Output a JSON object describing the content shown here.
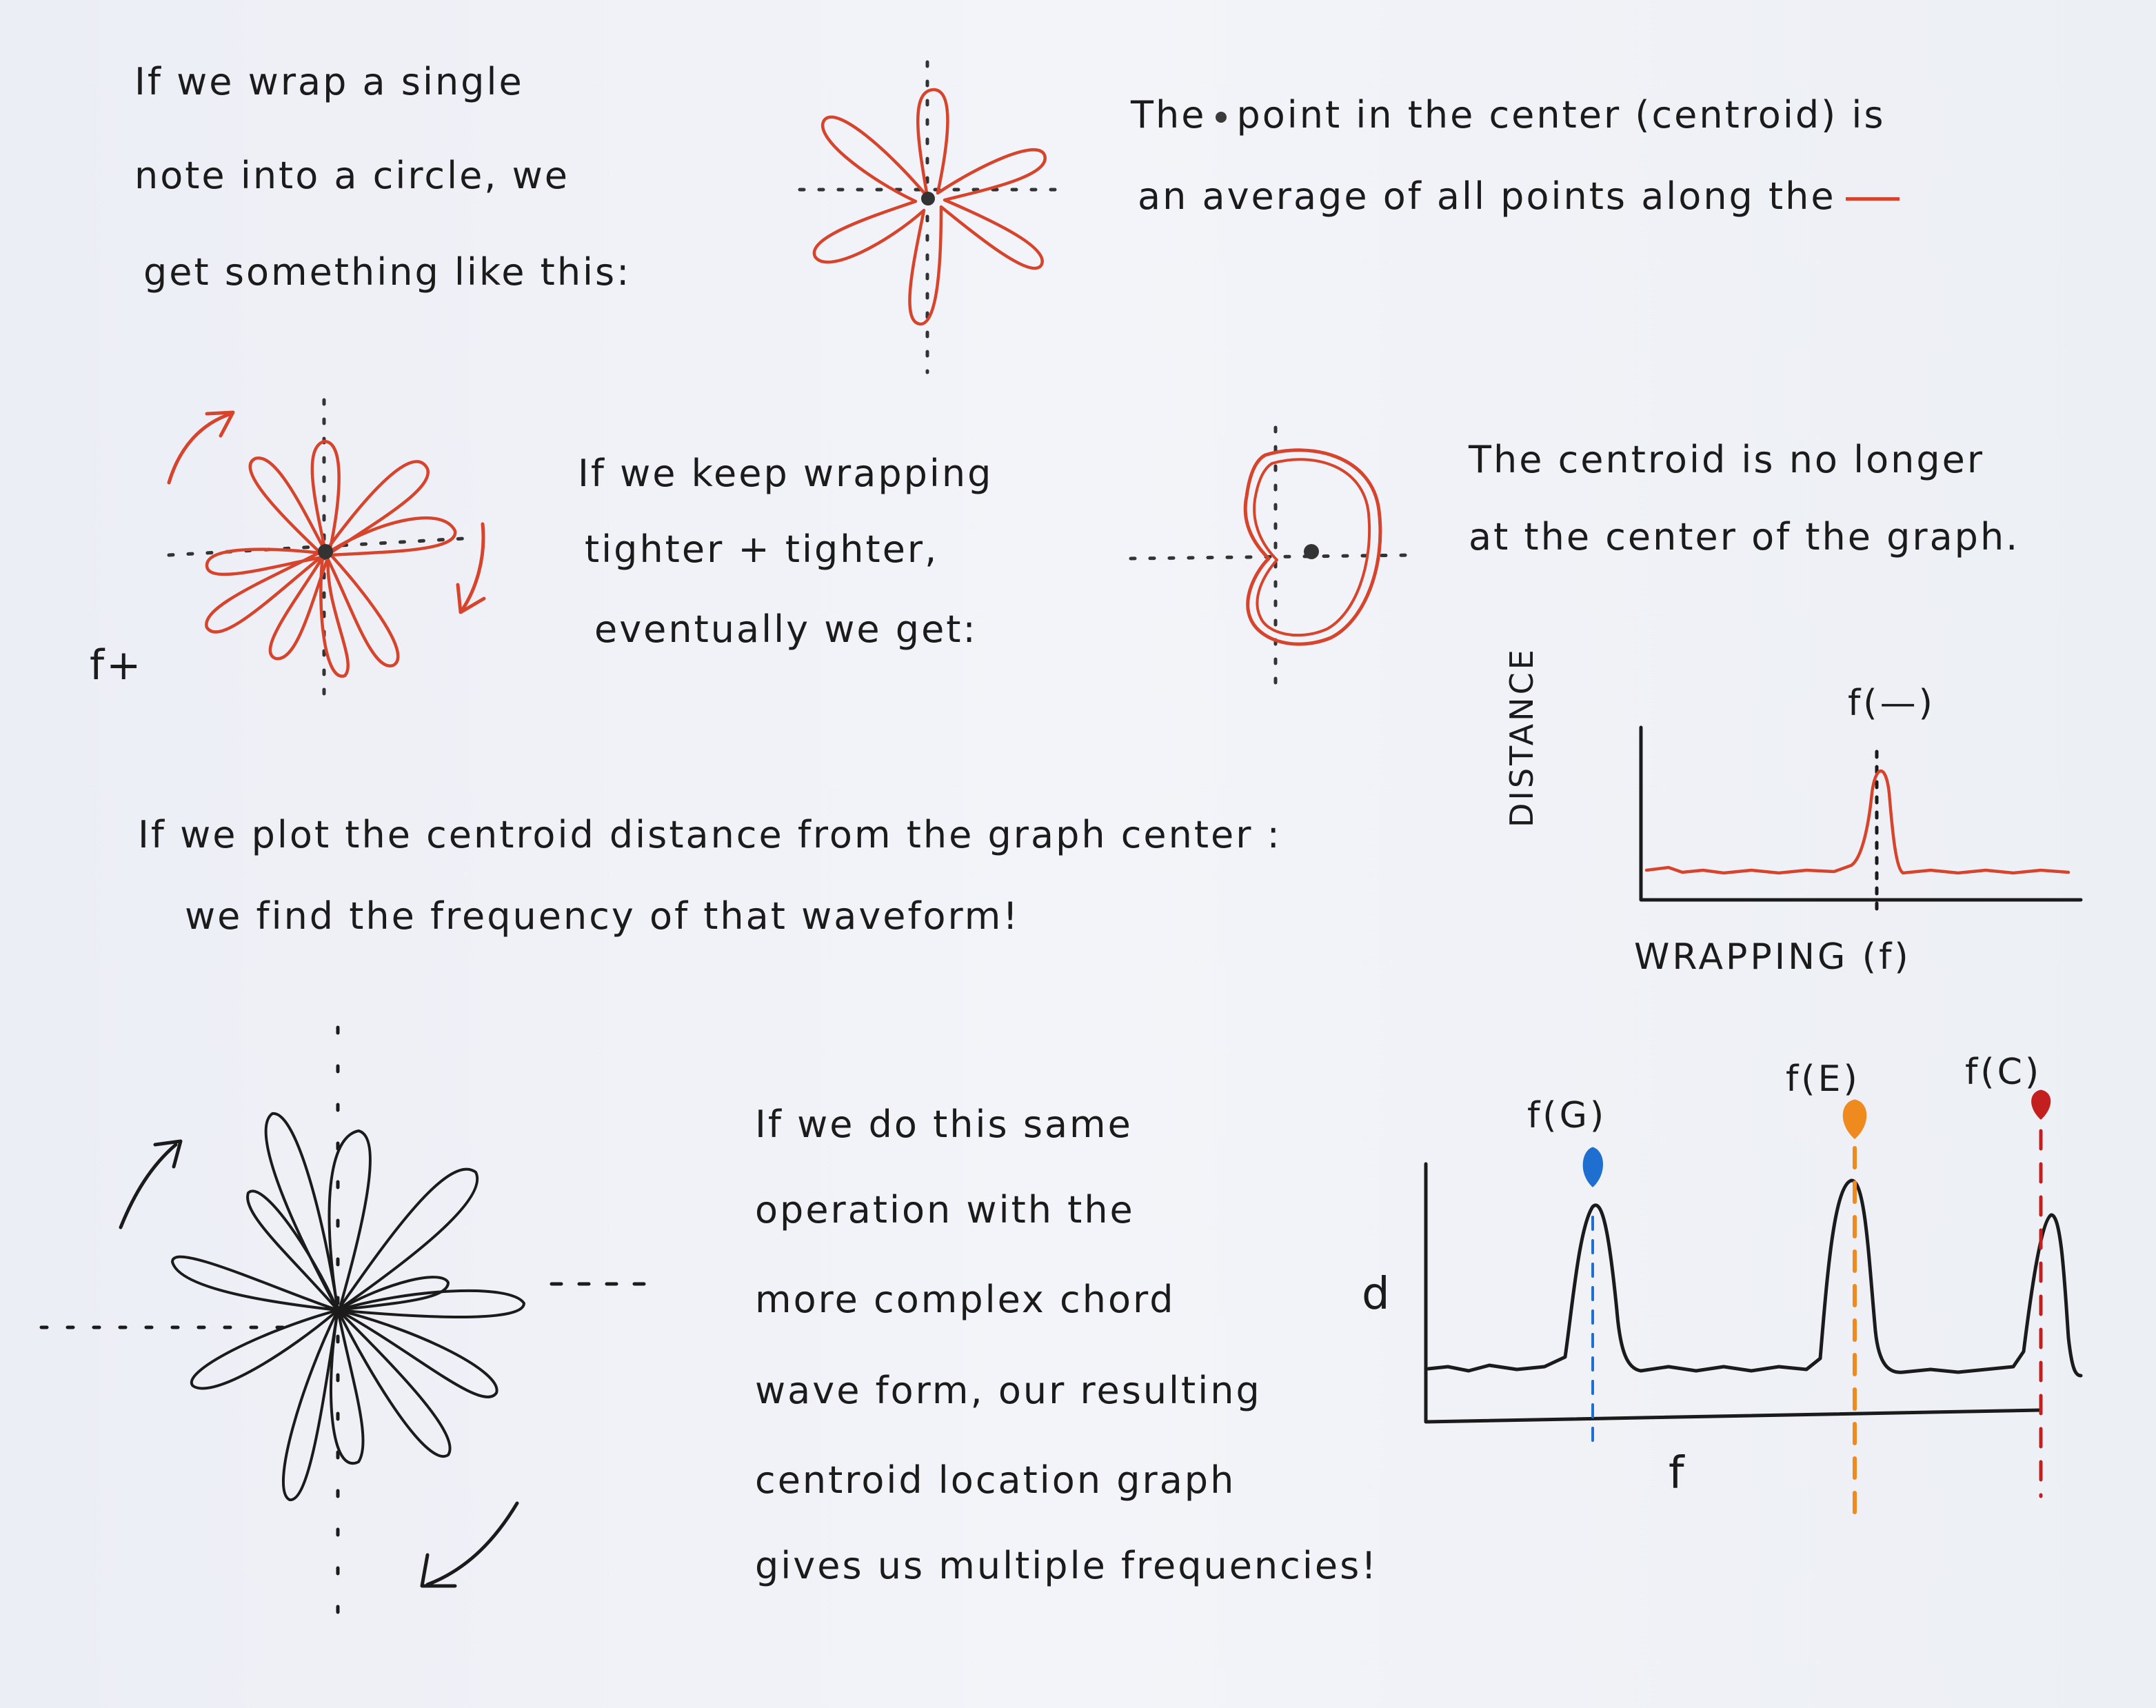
{
  "text": {
    "block1": {
      "line1": "If we wrap a single",
      "line2": "note into a circle, we",
      "line3": "get something like this:"
    },
    "block2": {
      "line1_pre": "The",
      "line1_post": "point in the center (centroid) is",
      "line2": "an average of all points along the"
    },
    "block3": {
      "line1": "If we keep wrapping",
      "line2": "tighter + tighter,",
      "line3": "eventually we get:"
    },
    "block4": {
      "line1": "The centroid is no longer",
      "line2": "at the center of the graph."
    },
    "f_plus": "f+",
    "block5": {
      "line1": "If we plot the centroid distance from the graph center :",
      "line2": "we find the frequency of that waveform!"
    },
    "block6": {
      "line1": "If we do this same",
      "line2": "operation with the",
      "line3": "more complex chord",
      "line4": "wave form, our resulting",
      "line5": "centroid location graph",
      "line6": "gives us multiple frequencies!"
    }
  },
  "charts": {
    "small": {
      "ylabel": "DISTANCE",
      "xlabel": "WRAPPING (f)",
      "peak_label": "f(—)"
    },
    "big": {
      "ylabel": "d",
      "xlabel": "f",
      "peaks": [
        "f(G)",
        "f(E)",
        "f(C)"
      ]
    }
  },
  "colors": {
    "red": "#d8432b",
    "blue": "#1f6fd0",
    "orange": "#ef8a1f",
    "darkred": "#c41f1f",
    "ink": "#1b1b1b"
  },
  "chart_data": [
    {
      "type": "line",
      "xlabel": "WRAPPING (f)",
      "ylabel": "DISTANCE",
      "annotations": [
        "f(—)"
      ],
      "series": [
        {
          "color": "#d8432b",
          "values": [
            0.15,
            0.17,
            0.16,
            0.16,
            0.17,
            0.16,
            0.18,
            0.2,
            0.4,
            0.95,
            0.5,
            0.17,
            0.16,
            0.17,
            0.16,
            0.16,
            0.16
          ]
        }
      ]
    },
    {
      "type": "line",
      "xlabel": "f",
      "ylabel": "d",
      "annotations": [
        "f(G)",
        "f(E)",
        "f(C)"
      ],
      "series": [
        {
          "color": "#1b1b1b",
          "values": [
            0.05,
            0.06,
            0.05,
            0.06,
            0.1,
            0.8,
            0.6,
            0.08,
            0.05,
            0.06,
            0.05,
            0.06,
            0.05,
            0.12,
            0.9,
            0.55,
            0.06,
            0.05,
            0.06,
            0.05,
            0.1,
            0.75,
            0.5,
            0.05
          ]
        }
      ]
    }
  ]
}
